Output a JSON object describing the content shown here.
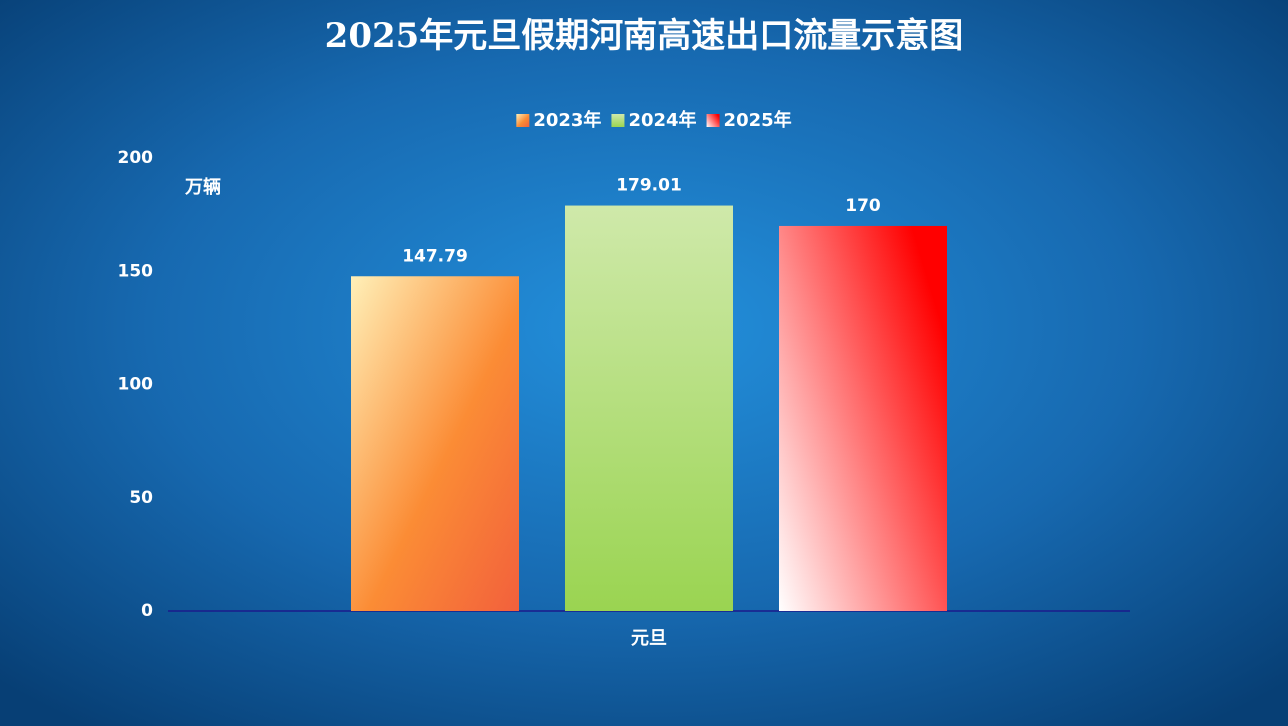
{
  "chart_data": {
    "type": "bar",
    "title": "2025年元旦假期河南高速出口流量示意图",
    "y_label": "万辆",
    "categories": [
      "元旦"
    ],
    "series": [
      {
        "name": "2023年",
        "color": "#fb8c35",
        "values": [
          147.79
        ]
      },
      {
        "name": "2024年",
        "color": "#9ad451",
        "values": [
          179.01
        ]
      },
      {
        "name": "2025年",
        "color": "#ff0000",
        "values": [
          170
        ]
      }
    ],
    "ylim": [
      0,
      200
    ],
    "yticks": [
      0,
      50,
      100,
      150,
      200
    ],
    "grid": false,
    "legend": "top"
  }
}
